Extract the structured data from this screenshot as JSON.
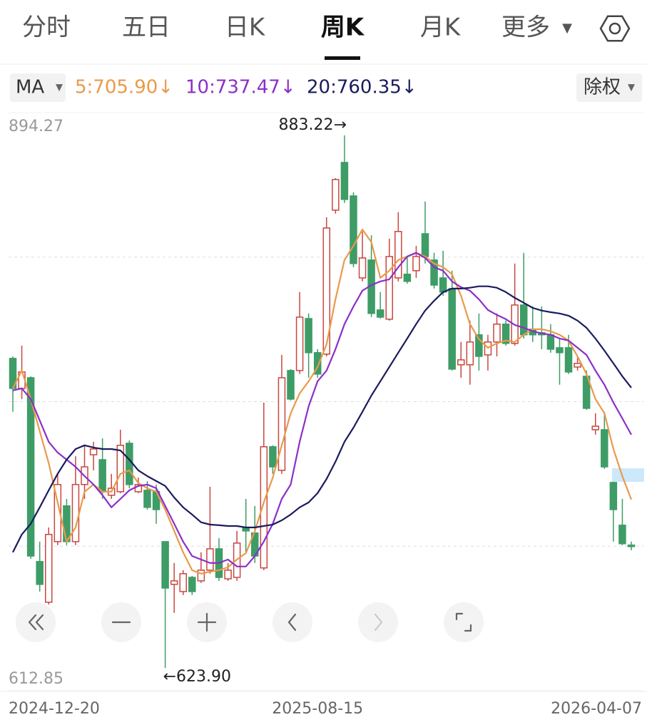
{
  "tabs": [
    {
      "label": "分时"
    },
    {
      "label": "五日"
    },
    {
      "label": "日K"
    },
    {
      "label": "周K",
      "selected": true
    },
    {
      "label": "月K"
    },
    {
      "label": "更多"
    }
  ],
  "ma_button": "MA",
  "adjust_button": "除权",
  "chart_data": {
    "type": "candlestick",
    "high_label": "883.22→",
    "low_label": "←623.90",
    "categories": [
      "2024-12-20",
      null,
      null,
      null,
      null,
      null,
      null,
      null,
      null,
      null,
      null,
      null,
      null,
      null,
      null,
      null,
      null,
      null,
      null,
      null,
      null,
      null,
      null,
      null,
      null,
      null,
      null,
      null,
      null,
      null,
      null,
      null,
      null,
      null,
      "2025-08-15",
      null,
      null,
      null,
      null,
      null,
      null,
      null,
      null,
      null,
      null,
      null,
      null,
      null,
      null,
      null,
      null,
      null,
      null,
      null,
      null,
      null,
      null,
      null,
      null,
      null,
      null,
      null,
      null,
      null,
      null,
      null,
      null,
      null,
      null,
      "2026-04-07"
    ],
    "open": [
      774.6,
      760.0,
      765.2,
      675.7,
      655.9,
      685.4,
      702.8,
      685.4,
      713.2,
      727.7,
      725.3,
      708.0,
      709.7,
      733.3,
      709.7,
      710.4,
      709.7,
      685.4,
      664.6,
      661.1,
      668.0,
      666.3,
      671.5,
      681.9,
      667.3,
      668.0,
      692.3,
      689.6,
      672.6,
      731.6,
      720.1,
      768.7,
      768.7,
      794.0,
      777.4,
      776.7,
      846.8,
      870.0,
      853.7,
      813.8,
      822.5,
      798.2,
      793.7,
      813.8,
      815.6,
      817.3,
      835.3,
      822.5,
      813.8,
      808.6,
      771.5,
      771.5,
      786.1,
      776.3,
      782.6,
      791.3,
      781.9,
      800.6,
      788.8,
      787.1,
      786.1,
      779.8,
      779.8,
      770.4,
      765.9,
      739.9,
      739.9,
      714.2,
      693.4,
      683.7
    ],
    "high": [
      775.6,
      780.8,
      765.9,
      685.4,
      692.3,
      718.4,
      706.2,
      727.0,
      732.3,
      734.0,
      735.7,
      718.4,
      739.9,
      734.7,
      716.6,
      714.9,
      713.2,
      685.4,
      675.0,
      671.5,
      668.7,
      680.2,
      712.1,
      687.1,
      675.0,
      690.6,
      706.2,
      702.8,
      753.1,
      732.3,
      776.3,
      769.4,
      806.9,
      796.5,
      779.1,
      843.3,
      862.4,
      883.22,
      855.5,
      836.4,
      834.6,
      806.9,
      832.9,
      845.8,
      824.2,
      829.4,
      851.0,
      826.0,
      827.0,
      817.3,
      782.6,
      793.0,
      796.5,
      786.1,
      796.5,
      793.0,
      820.8,
      826.0,
      799.9,
      799.9,
      791.3,
      784.3,
      786.1,
      775.6,
      768.7,
      747.9,
      748.6,
      714.5,
      706.2,
      685.4
    ],
    "low": [
      748.6,
      754.8,
      677.0,
      661.1,
      654.8,
      683.7,
      683.7,
      683.7,
      706.2,
      720.1,
      706.2,
      706.2,
      709.0,
      711.4,
      709.0,
      701.0,
      694.1,
      623.9,
      650.7,
      659.4,
      659.4,
      665.3,
      669.8,
      666.3,
      666.3,
      666.3,
      680.2,
      675.0,
      671.5,
      718.4,
      718.4,
      754.1,
      767.0,
      765.2,
      765.2,
      775.6,
      845.1,
      850.3,
      819.0,
      812.1,
      794.7,
      794.0,
      793.0,
      812.1,
      811.0,
      813.8,
      820.8,
      808.6,
      805.1,
      768.7,
      765.2,
      761.8,
      768.7,
      768.7,
      775.6,
      780.8,
      780.8,
      784.3,
      782.6,
      779.1,
      777.4,
      761.8,
      767.0,
      768.7,
      749.6,
      737.5,
      720.8,
      685.4,
      683.7,
      681.2
    ],
    "close": [
      760.0,
      768.0,
      678.4,
      664.6,
      688.9,
      713.2,
      685.4,
      713.2,
      721.8,
      730.5,
      709.7,
      711.4,
      732.3,
      713.2,
      713.2,
      702.1,
      701.0,
      662.8,
      666.3,
      669.8,
      661.1,
      671.5,
      681.9,
      668.0,
      671.5,
      684.7,
      690.6,
      678.4,
      731.6,
      721.8,
      765.2,
      754.8,
      794.7,
      777.4,
      767.0,
      838.1,
      861.7,
      852.0,
      820.8,
      823.5,
      796.5,
      794.7,
      824.2,
      836.4,
      812.1,
      824.2,
      824.2,
      810.3,
      806.9,
      769.4,
      773.9,
      782.6,
      775.6,
      782.6,
      791.3,
      781.9,
      800.6,
      786.1,
      786.1,
      786.1,
      779.1,
      777.4,
      768.0,
      772.2,
      750.3,
      741.6,
      721.8,
      701.0,
      684.4,
      683.0
    ],
    "up_color": "#c8473f",
    "down_color": "#3e9c66",
    "series": [
      {
        "name": "5:705.90↓",
        "color": "#e99a4a",
        "values": [
          760.0,
          768.7,
          754.8,
          739.2,
          723.6,
          704.5,
          685.4,
          692.3,
          709.7,
          713.2,
          709.7,
          709.7,
          718.4,
          720.1,
          713.9,
          711.4,
          709.7,
          701.0,
          690.6,
          680.2,
          671.5,
          669.8,
          670.8,
          671.5,
          672.9,
          676.7,
          679.8,
          690.6,
          704.5,
          716.6,
          732.3,
          747.9,
          757.6,
          763.5,
          770.4,
          781.5,
          803.4,
          822.5,
          829.4,
          837.4,
          831.2,
          813.8,
          817.3,
          822.5,
          824.2,
          826.0,
          824.2,
          820.8,
          819.0,
          815.6,
          805.1,
          791.3,
          784.0,
          779.8,
          781.9,
          783.3,
          782.6,
          786.1,
          788.8,
          788.8,
          787.8,
          786.1,
          783.3,
          775.6,
          767.0,
          754.8,
          747.9,
          730.5,
          717.3,
          705.9
        ]
      },
      {
        "name": "10:737.47↓",
        "color": "#8b2fc9",
        "values": [
          759.0,
          760.0,
          754.8,
          744.4,
          734.0,
          728.8,
          725.3,
          721.8,
          717.3,
          713.2,
          708.0,
          702.1,
          706.2,
          710.4,
          712.5,
          713.2,
          711.4,
          702.8,
          694.1,
          685.4,
          678.4,
          676.7,
          675.0,
          675.0,
          676.7,
          673.3,
          673.3,
          678.4,
          685.4,
          694.1,
          706.2,
          713.2,
          734.0,
          751.3,
          763.5,
          768.7,
          779.1,
          791.3,
          799.9,
          807.6,
          810.3,
          812.1,
          813.1,
          819.0,
          824.2,
          826.0,
          823.5,
          819.0,
          817.3,
          812.1,
          809.3,
          807.6,
          803.4,
          798.2,
          795.8,
          793.7,
          790.9,
          789.5,
          787.8,
          786.8,
          786.1,
          784.3,
          783.3,
          779.8,
          776.3,
          768.7,
          761.8,
          753.1,
          745.4,
          737.47
        ]
      },
      {
        "name": "20:760.35↓",
        "color": "#1b1b5e",
        "values": [
          680.2,
          688.9,
          694.1,
          702.1,
          710.4,
          718.4,
          725.3,
          730.5,
          732.3,
          731.2,
          730.5,
          730.5,
          729.8,
          725.3,
          720.1,
          717.3,
          714.9,
          712.5,
          706.9,
          702.1,
          698.6,
          694.8,
          693.7,
          693.4,
          693.0,
          693.0,
          692.3,
          692.3,
          693.0,
          693.7,
          695.8,
          698.6,
          702.1,
          704.5,
          709.0,
          715.9,
          724.3,
          734.0,
          740.9,
          748.6,
          756.5,
          763.5,
          770.4,
          777.4,
          784.3,
          791.3,
          797.9,
          802.7,
          806.9,
          808.6,
          808.6,
          809.0,
          809.7,
          809.7,
          809.0,
          806.9,
          804.1,
          801.7,
          799.2,
          797.9,
          797.1,
          796.5,
          795.4,
          793.0,
          789.5,
          784.3,
          778.4,
          772.2,
          765.9,
          760.35
        ]
      }
    ],
    "ylim": [
      612.85,
      894.27
    ],
    "yticks": [
      612.85,
      894.27
    ]
  }
}
